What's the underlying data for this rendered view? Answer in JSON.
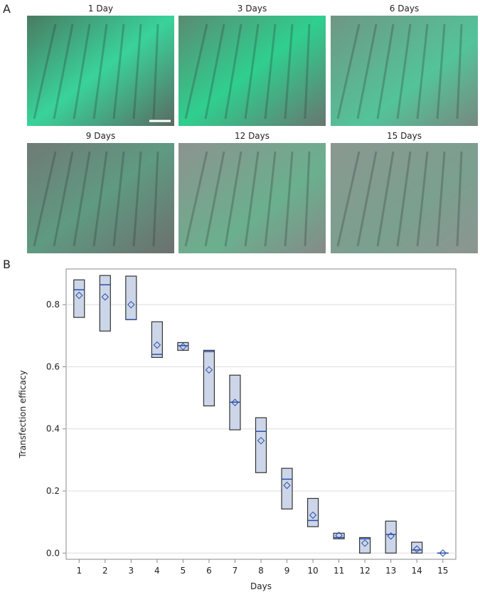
{
  "panel_a": {
    "label": "A",
    "images": [
      {
        "title": "1 Day"
      },
      {
        "title": "3 Days"
      },
      {
        "title": "6 Days"
      },
      {
        "title": "9 Days"
      },
      {
        "title": "12 Days"
      },
      {
        "title": "15 Days"
      }
    ]
  },
  "panel_b": {
    "label": "B"
  },
  "chart_data": {
    "type": "box",
    "x_label": "Days",
    "y_label": "Transfection efficacy",
    "categories": [
      "1",
      "2",
      "3",
      "4",
      "5",
      "6",
      "7",
      "8",
      "9",
      "10",
      "11",
      "12",
      "13",
      "14",
      "15"
    ],
    "min": [
      0.759,
      0.715,
      0.752,
      0.63,
      0.653,
      0.474,
      0.397,
      0.259,
      0.142,
      0.085,
      0.046,
      0,
      0,
      0,
      0
    ],
    "max": [
      0.88,
      0.894,
      0.892,
      0.745,
      0.678,
      0.653,
      0.573,
      0.436,
      0.273,
      0.176,
      0.064,
      0.05,
      0.103,
      0.035,
      0
    ],
    "median": [
      0.848,
      0.864,
      0.752,
      0.64,
      0.668,
      0.649,
      0.486,
      0.392,
      0.238,
      0.105,
      0.05,
      0.046,
      0.06,
      0.01,
      0
    ],
    "mean": [
      0.83,
      0.825,
      0.8,
      0.67,
      0.665,
      0.59,
      0.485,
      0.362,
      0.218,
      0.122,
      0.057,
      0.032,
      0.055,
      0.013,
      0
    ],
    "box_color": "#ccd6e8",
    "line_color": "#2b4ea8",
    "ylim": [
      -0.02,
      0.915
    ],
    "yticks": [
      {
        "value": 0,
        "label": "0.0"
      },
      0.2,
      0.4,
      0.6,
      0.8
    ],
    "grid": true
  }
}
